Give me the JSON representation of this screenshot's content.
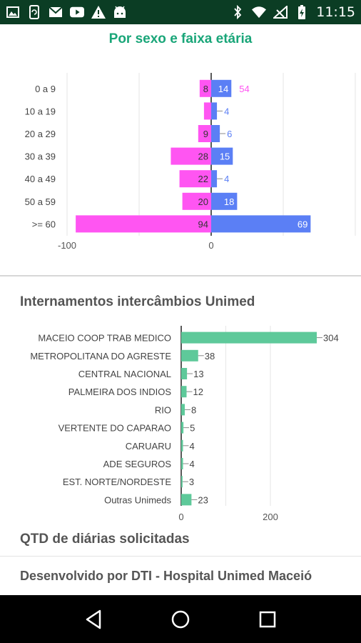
{
  "status_bar": {
    "time": "11:15",
    "left_icons": [
      "image-icon",
      "sync-phone-icon",
      "gmail-icon",
      "youtube-icon",
      "warning-icon",
      "android-icon"
    ],
    "right_icons": [
      "bluetooth-icon",
      "wifi-icon",
      "no-signal-icon",
      "battery-charging-icon"
    ]
  },
  "sections": {
    "age_sex_title": "Por sexo e faixa etária",
    "hospitalizations_title": "Internamentos intercâmbios Unimed",
    "daily_requests_title": "QTD de diárias solicitadas",
    "footer": "Desenvolvido por DTI - Hospital Unimed Maceió"
  },
  "colors": {
    "female": "#ff55f2",
    "male": "#5b7ff5",
    "teal": "#5ec99a",
    "title_green": "#1aa679",
    "status_bar": "#0b3d24"
  },
  "chart_data": [
    {
      "type": "bar",
      "orientation": "horizontal-diverging",
      "categories": [
        "0 a 9",
        "10 a 19",
        "20 a 29",
        "30 a 39",
        "40 a 49",
        "50 a 59",
        ">= 60"
      ],
      "series": [
        {
          "values": [
            -8,
            -5,
            -9,
            -28,
            -22,
            -20,
            -94
          ],
          "labels": [
            "8",
            "",
            "9",
            "28",
            "22",
            "20",
            "94"
          ]
        },
        {
          "values": [
            14,
            4,
            6,
            15,
            4,
            18,
            69
          ],
          "labels": [
            "14",
            "4",
            "6",
            "15",
            "4",
            "18",
            "69"
          ]
        }
      ],
      "overlap_labels": [
        "54",
        "",
        "",
        "",
        "",
        "",
        ""
      ],
      "xlim": [
        -100,
        100
      ],
      "xticks": [
        "-100",
        "0"
      ],
      "grid": true
    },
    {
      "type": "bar",
      "orientation": "horizontal",
      "categories": [
        "MACEIO COOP TRAB MEDICO",
        "METROPOLITANA DO AGRESTE",
        "CENTRAL NACIONAL",
        "PALMEIRA DOS INDIOS",
        "RIO",
        "VERTENTE DO CAPARAO",
        "CARUARU",
        "ADE SEGUROS",
        "EST. NORTE/NORDESTE",
        "Outras Unimeds"
      ],
      "values": [
        304,
        38,
        13,
        12,
        8,
        5,
        4,
        4,
        3,
        23
      ],
      "xlim": [
        0,
        304
      ],
      "xticks": [
        "0",
        "200"
      ],
      "grid": true
    }
  ]
}
